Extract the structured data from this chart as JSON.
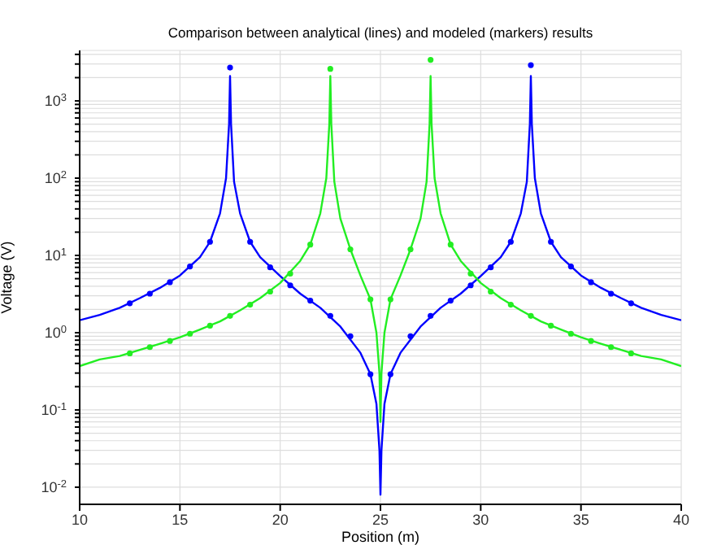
{
  "chart_data": {
    "type": "line",
    "title": "Comparison between analytical (lines) and modeled (markers) results",
    "xlabel": "Position (m)",
    "ylabel": "Voltage (V)",
    "log": "y",
    "grid": true,
    "xlim": [
      10,
      40
    ],
    "xticks": [
      10,
      15,
      20,
      25,
      30,
      35,
      40
    ],
    "ylim": [
      0.006,
      4500
    ],
    "yticks": [
      {
        "value": 0.01,
        "label": "10$^{-2}$"
      },
      {
        "value": 0.02,
        "label": null
      },
      {
        "value": 0.03,
        "label": null
      },
      {
        "value": 0.04,
        "label": null
      },
      {
        "value": 0.05,
        "label": null
      },
      {
        "value": 0.06,
        "label": null
      },
      {
        "value": 0.07,
        "label": null
      },
      {
        "value": 0.08,
        "label": null
      },
      {
        "value": 0.09,
        "label": null
      },
      {
        "value": 0.1,
        "label": "10$^{-1}$"
      },
      {
        "value": 0.2,
        "label": null
      },
      {
        "value": 0.3,
        "label": null
      },
      {
        "value": 0.4,
        "label": null
      },
      {
        "value": 0.5,
        "label": null
      },
      {
        "value": 0.6,
        "label": null
      },
      {
        "value": 0.7,
        "label": null
      },
      {
        "value": 0.8,
        "label": null
      },
      {
        "value": 0.9,
        "label": null
      },
      {
        "value": 1,
        "label": "10$^{0}$"
      },
      {
        "value": 2,
        "label": null
      },
      {
        "value": 3,
        "label": null
      },
      {
        "value": 4,
        "label": null
      },
      {
        "value": 5,
        "label": null
      },
      {
        "value": 6,
        "label": null
      },
      {
        "value": 7,
        "label": null
      },
      {
        "value": 8,
        "label": null
      },
      {
        "value": 9,
        "label": null
      },
      {
        "value": 10,
        "label": "10$^{1}$"
      },
      {
        "value": 20,
        "label": null
      },
      {
        "value": 30,
        "label": null
      },
      {
        "value": 40,
        "label": null
      },
      {
        "value": 50,
        "label": null
      },
      {
        "value": 60,
        "label": null
      },
      {
        "value": 70,
        "label": null
      },
      {
        "value": 80,
        "label": null
      },
      {
        "value": 90,
        "label": null
      },
      {
        "value": 100,
        "label": "10$^{2}$"
      },
      {
        "value": 200,
        "label": null
      },
      {
        "value": 300,
        "label": null
      },
      {
        "value": 400,
        "label": null
      },
      {
        "value": 500,
        "label": null
      },
      {
        "value": 600,
        "label": null
      },
      {
        "value": 700,
        "label": null
      },
      {
        "value": 800,
        "label": null
      },
      {
        "value": 900,
        "label": null
      },
      {
        "value": 1000,
        "label": "10$^{3}$"
      },
      {
        "value": 2000,
        "label": null
      },
      {
        "value": 3000,
        "label": null
      },
      {
        "value": 4000,
        "label": null
      }
    ],
    "series": [
      {
        "type": "line",
        "marker": "none",
        "color": "#0000ff",
        "x": [
          10,
          11,
          12,
          13,
          14,
          15,
          16,
          16.5,
          17,
          17.3,
          17.45,
          17.5,
          17.55,
          17.7,
          18,
          18.5,
          19,
          20,
          21,
          22,
          23,
          24,
          24.5,
          24.8,
          24.95,
          25,
          25.05,
          25.2,
          25.5,
          26,
          27,
          28,
          29,
          30,
          31,
          31.5,
          32,
          32.3,
          32.45,
          32.5,
          32.55,
          32.7,
          33,
          33.5,
          34,
          35,
          36,
          37,
          38,
          39,
          40
        ],
        "values": [
          1.45,
          1.7,
          2.1,
          2.8,
          3.8,
          5.5,
          9.5,
          15,
          35,
          100,
          500,
          2100,
          500,
          90,
          35,
          15,
          9.5,
          5.4,
          3.2,
          2.1,
          1.2,
          0.55,
          0.29,
          0.12,
          0.03,
          0.008,
          0.03,
          0.12,
          0.29,
          0.55,
          1.2,
          2.1,
          3.2,
          5.4,
          9.5,
          15,
          35,
          90,
          500,
          2100,
          500,
          100,
          35,
          15,
          9.5,
          5.5,
          3.8,
          2.8,
          2.1,
          1.7,
          1.45
        ]
      },
      {
        "type": "scatter",
        "marker": "circle",
        "color": "#0000ff",
        "x": [
          12.5,
          13.5,
          14.5,
          15.5,
          16.5,
          17.5,
          18.5,
          19.5,
          20.5,
          21.5,
          22.5,
          23.5,
          24.5,
          25.5,
          26.5,
          27.5,
          28.5,
          29.5,
          30.5,
          31.5,
          32.5,
          33.5,
          34.5,
          35.5,
          36.5,
          37.5
        ],
        "values": [
          2.4,
          3.2,
          4.5,
          7.2,
          15,
          2700,
          15,
          7,
          4.1,
          2.6,
          1.65,
          0.9,
          0.29,
          0.29,
          0.9,
          1.65,
          2.6,
          4.1,
          7,
          15,
          2900,
          15,
          7.2,
          4.5,
          3.2,
          2.4
        ]
      },
      {
        "type": "line",
        "marker": "none",
        "color": "#22ee22",
        "x": [
          10,
          11,
          12,
          13,
          14,
          15,
          16,
          17,
          18,
          19,
          20,
          21,
          21.5,
          22,
          22.3,
          22.45,
          22.5,
          22.55,
          22.7,
          23,
          23.5,
          24,
          24.5,
          24.8,
          24.95,
          25,
          25.05,
          25.2,
          25.5,
          26,
          26.5,
          27,
          27.3,
          27.45,
          27.5,
          27.55,
          27.7,
          28,
          28.5,
          29,
          30,
          31,
          32,
          33,
          34,
          35,
          36,
          37,
          38,
          39,
          40
        ],
        "values": [
          0.37,
          0.45,
          0.5,
          0.6,
          0.72,
          0.87,
          1.1,
          1.4,
          1.95,
          2.8,
          4.4,
          8.5,
          13.8,
          35,
          100,
          500,
          2100,
          500,
          90,
          30,
          12,
          5.5,
          2.7,
          1,
          0.3,
          0.07,
          0.3,
          1,
          2.7,
          5.5,
          12,
          30,
          90,
          500,
          2100,
          500,
          100,
          35,
          13.8,
          8.5,
          4.4,
          2.8,
          1.95,
          1.4,
          1.1,
          0.87,
          0.72,
          0.6,
          0.5,
          0.45,
          0.37
        ]
      },
      {
        "type": "scatter",
        "marker": "circle",
        "color": "#22ee22",
        "x": [
          12.5,
          13.5,
          14.5,
          15.5,
          16.5,
          17.5,
          18.5,
          19.5,
          20.5,
          21.5,
          22.5,
          23.5,
          24.5,
          25.5,
          26.5,
          27.5,
          28.5,
          29.5,
          30.5,
          31.5,
          32.5,
          33.5,
          34.5,
          35.5,
          36.5,
          37.5
        ],
        "values": [
          0.54,
          0.65,
          0.78,
          0.97,
          1.23,
          1.65,
          2.3,
          3.4,
          5.8,
          13.8,
          2600,
          12,
          2.7,
          2.7,
          12,
          3400,
          13.8,
          5.8,
          3.4,
          2.3,
          1.65,
          1.23,
          0.97,
          0.78,
          0.65,
          0.54
        ]
      }
    ]
  }
}
